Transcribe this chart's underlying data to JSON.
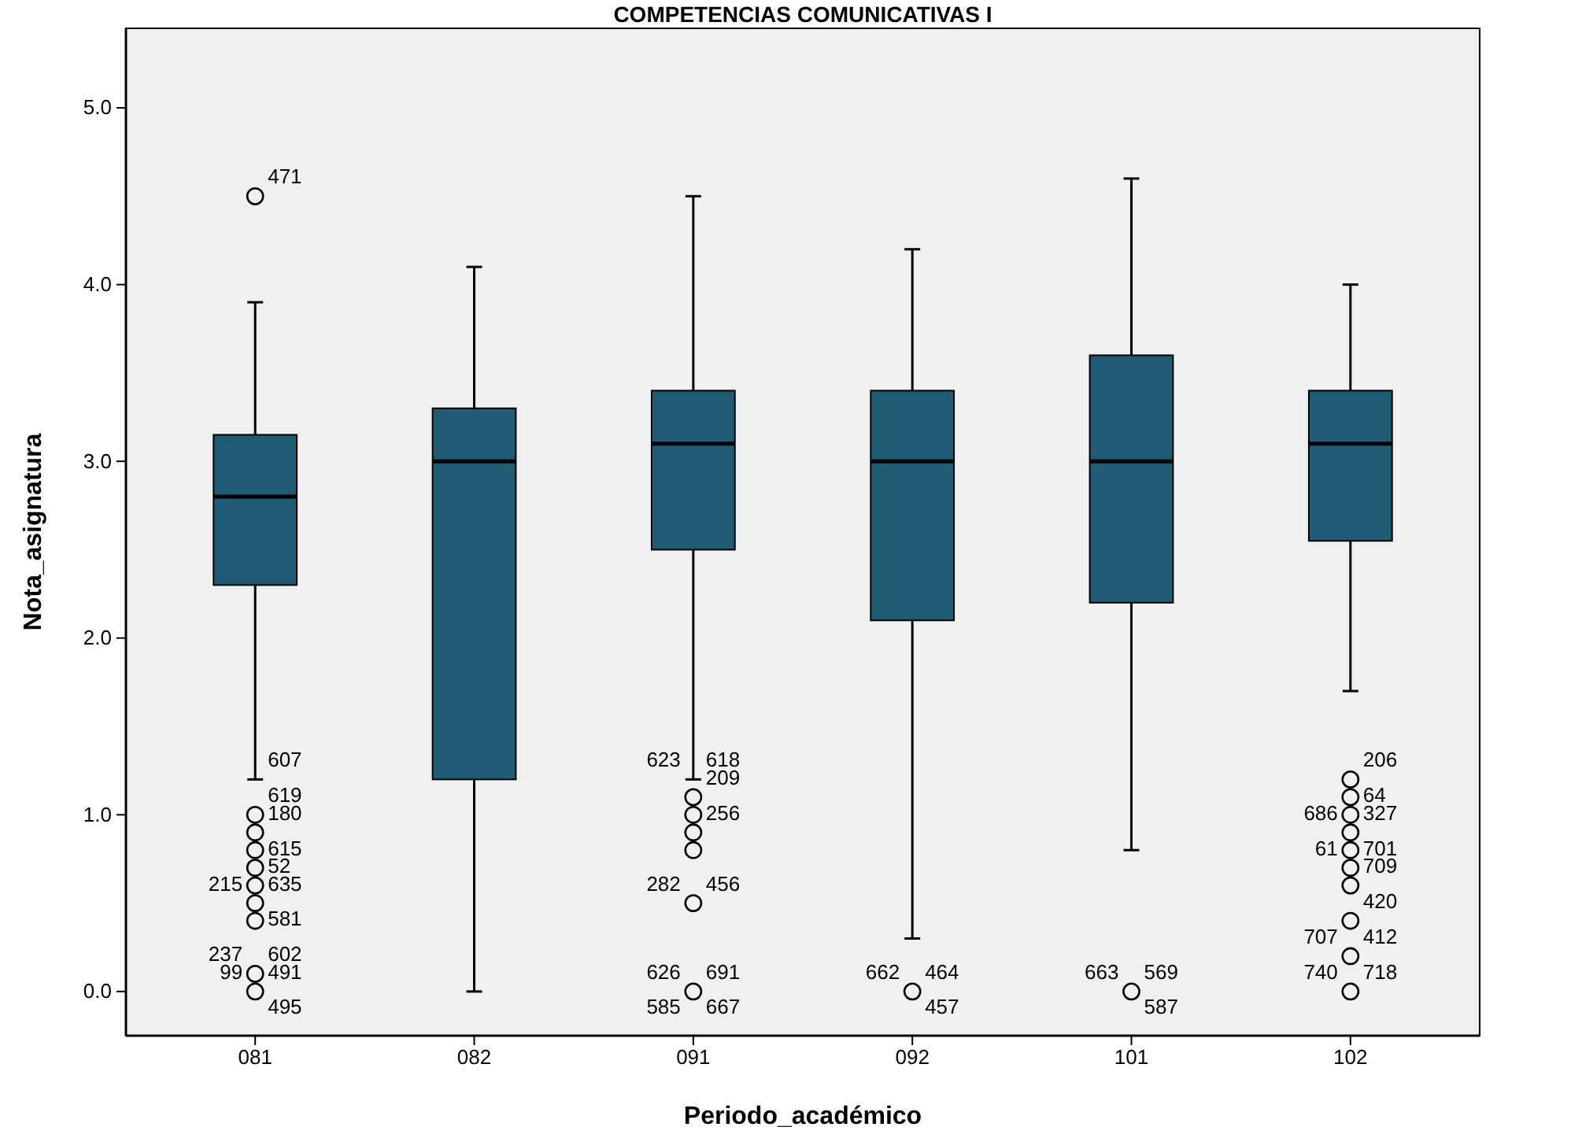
{
  "chart_data": {
    "type": "box",
    "title": "COMPETENCIAS COMUNICATIVAS I",
    "xlabel": "Periodo_académico",
    "ylabel": "Nota_asignatura",
    "categories": [
      "081",
      "082",
      "091",
      "092",
      "101",
      "102"
    ],
    "ylim": [
      -0.25,
      5.45
    ],
    "yticks": [
      {
        "value": 0,
        "label": "0.0"
      },
      {
        "value": 1,
        "label": "1.0"
      },
      {
        "value": 2,
        "label": "2.0"
      },
      {
        "value": 3,
        "label": "3.0"
      },
      {
        "value": 4,
        "label": "4.0"
      },
      {
        "value": 5,
        "label": "5.0"
      }
    ],
    "grid": false,
    "series": [
      {
        "color": "#1f5c74",
        "boxes": [
          {
            "low": 1.2,
            "q1": 2.3,
            "median": 2.8,
            "q3": 3.15,
            "high": 3.9
          },
          {
            "low": 0.0,
            "q1": 1.2,
            "median": 3.0,
            "q3": 3.3,
            "high": 4.1
          },
          {
            "low": 1.2,
            "q1": 2.5,
            "median": 3.1,
            "q3": 3.4,
            "high": 4.5
          },
          {
            "low": 0.3,
            "q1": 2.1,
            "median": 3.0,
            "q3": 3.4,
            "high": 4.2
          },
          {
            "low": 0.8,
            "q1": 2.2,
            "median": 3.0,
            "q3": 3.6,
            "high": 4.6
          },
          {
            "low": 1.7,
            "q1": 2.55,
            "median": 3.1,
            "q3": 3.4,
            "high": 4.0
          }
        ]
      },
      {
        "type": "scatter",
        "color": "#000000",
        "marker": "circle",
        "x": [
          "081",
          "081",
          "081",
          "081",
          "081",
          "081",
          "081",
          "081",
          "081",
          "081",
          "091",
          "091",
          "091",
          "091",
          "091",
          "091",
          "092",
          "101",
          "102",
          "102",
          "102",
          "102",
          "102",
          "102",
          "102",
          "102",
          "102",
          "102"
        ],
        "values": [
          4.5,
          1.0,
          0.9,
          0.8,
          0.7,
          0.6,
          0.5,
          0.4,
          0.1,
          0.0,
          1.1,
          1.0,
          0.9,
          0.8,
          0.5,
          0.0,
          0.0,
          0.0,
          1.2,
          1.1,
          1.0,
          0.9,
          0.8,
          0.7,
          0.6,
          0.4,
          0.2,
          0.0
        ]
      }
    ],
    "annotations": [
      {
        "text": "471",
        "x": "081",
        "y": 4.5
      },
      {
        "text": "607",
        "x": "081",
        "y": 1.2
      },
      {
        "text": "619",
        "x": "081",
        "y": 1.0
      },
      {
        "text": "180",
        "x": "081",
        "y": 0.9
      },
      {
        "text": "615",
        "x": "081",
        "y": 0.7
      },
      {
        "text": "52",
        "x": "081",
        "y": 0.6
      },
      {
        "text": "635",
        "x": "081",
        "y": 0.5
      },
      {
        "text": "215",
        "x": "081",
        "y": 0.5
      },
      {
        "text": "581",
        "x": "081",
        "y": 0.5
      },
      {
        "text": "602",
        "x": "081",
        "y": 0.1
      },
      {
        "text": "237",
        "x": "081",
        "y": 0.1
      },
      {
        "text": "491",
        "x": "081",
        "y": 0.0
      },
      {
        "text": "99",
        "x": "081",
        "y": 0.0
      },
      {
        "text": "495",
        "x": "081",
        "y": 0.0
      },
      {
        "text": "618",
        "x": "091",
        "y": 1.2
      },
      {
        "text": "623",
        "x": "091",
        "y": 1.2
      },
      {
        "text": "209",
        "x": "091",
        "y": 1.1
      },
      {
        "text": "256",
        "x": "091",
        "y": 0.9
      },
      {
        "text": "456",
        "x": "091",
        "y": 0.5
      },
      {
        "text": "282",
        "x": "091",
        "y": 0.5
      },
      {
        "text": "691",
        "x": "091",
        "y": 0.0
      },
      {
        "text": "626",
        "x": "091",
        "y": 0.0
      },
      {
        "text": "667",
        "x": "091",
        "y": 0.0
      },
      {
        "text": "585",
        "x": "091",
        "y": 0.0
      },
      {
        "text": "464",
        "x": "092",
        "y": 0.0
      },
      {
        "text": "662",
        "x": "092",
        "y": 0.0
      },
      {
        "text": "457",
        "x": "092",
        "y": 0.0
      },
      {
        "text": "569",
        "x": "101",
        "y": 0.0
      },
      {
        "text": "663",
        "x": "101",
        "y": 0.0
      },
      {
        "text": "587",
        "x": "101",
        "y": 0.0
      },
      {
        "text": "206",
        "x": "102",
        "y": 1.2
      },
      {
        "text": "64",
        "x": "102",
        "y": 1.0
      },
      {
        "text": "327",
        "x": "102",
        "y": 0.9
      },
      {
        "text": "686",
        "x": "102",
        "y": 0.9
      },
      {
        "text": "701",
        "x": "102",
        "y": 0.7
      },
      {
        "text": "61",
        "x": "102",
        "y": 0.7
      },
      {
        "text": "709",
        "x": "102",
        "y": 0.6
      },
      {
        "text": "420",
        "x": "102",
        "y": 0.4
      },
      {
        "text": "412",
        "x": "102",
        "y": 0.2
      },
      {
        "text": "707",
        "x": "102",
        "y": 0.2
      },
      {
        "text": "718",
        "x": "102",
        "y": 0.0
      },
      {
        "text": "740",
        "x": "102",
        "y": 0.0
      }
    ]
  }
}
